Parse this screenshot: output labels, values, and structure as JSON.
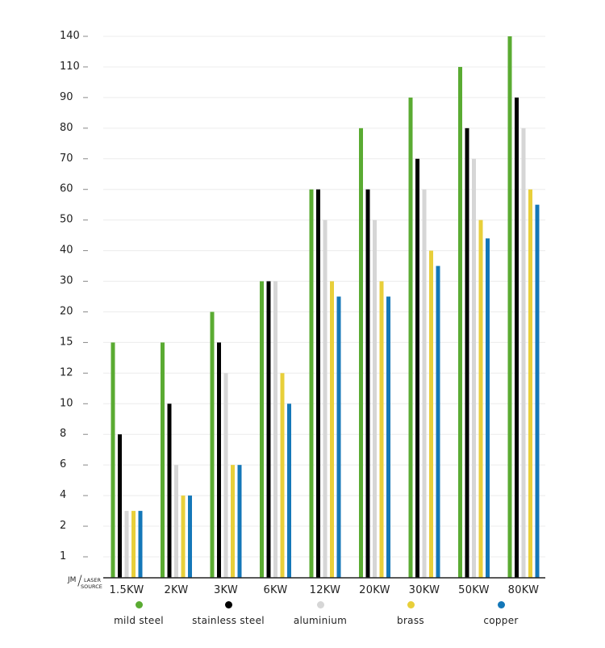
{
  "chart_data": {
    "type": "bar",
    "categories": [
      "1.5KW",
      "2KW",
      "3KW",
      "6KW",
      "12KW",
      "20KW",
      "30KW",
      "50KW",
      "80KW"
    ],
    "y_ticks": [
      "1",
      "2",
      "4",
      "6",
      "8",
      "10",
      "12",
      "15",
      "20",
      "30",
      "40",
      "50",
      "60",
      "70",
      "80",
      "90",
      "110",
      "140"
    ],
    "y_scale": "ordinal (evenly spaced tick labels)",
    "y_unit_label": [
      "JM",
      "LASER",
      "SOURCE"
    ],
    "grid": true,
    "legend_position": "bottom",
    "series": [
      {
        "name": "mild steel",
        "color": "#5aab32",
        "values": [
          15,
          15,
          20,
          30,
          60,
          80,
          90,
          110,
          140
        ]
      },
      {
        "name": "stainless steel",
        "color": "#000000",
        "values": [
          8,
          10,
          15,
          30,
          60,
          60,
          70,
          80,
          90
        ]
      },
      {
        "name": "aluminium",
        "color": "#d6d6d6",
        "values": [
          3,
          6,
          12,
          30,
          50,
          50,
          60,
          70,
          80
        ]
      },
      {
        "name": "brass",
        "color": "#e8cf3a",
        "values": [
          3,
          4,
          6,
          12,
          30,
          30,
          40,
          50,
          60
        ]
      },
      {
        "name": "copper",
        "color": "#1477b8",
        "values": [
          3,
          4,
          6,
          10,
          25,
          25,
          35,
          44,
          55
        ]
      }
    ]
  }
}
